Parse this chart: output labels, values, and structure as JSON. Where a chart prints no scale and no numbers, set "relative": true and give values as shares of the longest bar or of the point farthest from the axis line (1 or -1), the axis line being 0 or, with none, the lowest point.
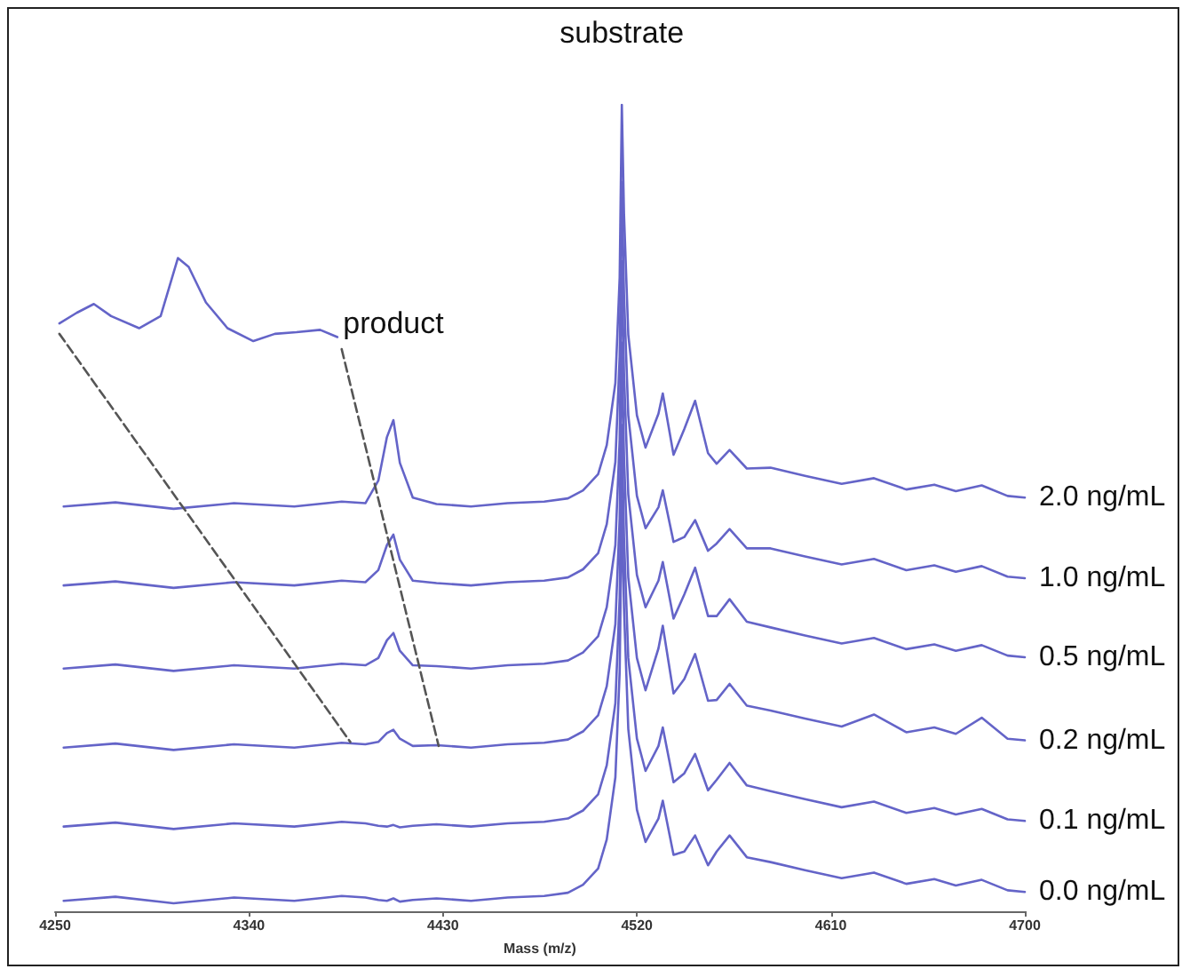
{
  "chart_data": {
    "type": "line",
    "relative": true,
    "marker": "none",
    "xlabel": "Mass (m/z)",
    "xlim": [
      4250,
      4700
    ],
    "xticks": [
      4250,
      4340,
      4430,
      4520,
      4610,
      4700
    ],
    "annotations": [
      {
        "text": "substrate",
        "x": 4513,
        "y": 1.0
      },
      {
        "text": "product",
        "x": 4407,
        "y": 0.609
      }
    ],
    "x": [
      4254,
      4278,
      4305,
      4333,
      4361,
      4383,
      4394,
      4400,
      4404,
      4407,
      4410,
      4416,
      4427,
      4443,
      4460,
      4477,
      4488,
      4495,
      4502,
      4506,
      4510,
      4512,
      4513,
      4514,
      4516,
      4520,
      4524,
      4530,
      4532,
      4537,
      4542,
      4547,
      4553,
      4557,
      4563,
      4571,
      4582,
      4598,
      4615,
      4630,
      4645,
      4658,
      4668,
      4680,
      4692,
      4700
    ],
    "series": [
      {
        "name": "2.0 ng/mL",
        "color": "#6464c8",
        "values": [
          0.502,
          0.507,
          0.499,
          0.506,
          0.502,
          0.508,
          0.506,
          0.534,
          0.588,
          0.609,
          0.556,
          0.513,
          0.505,
          0.502,
          0.506,
          0.508,
          0.512,
          0.522,
          0.542,
          0.578,
          0.655,
          0.786,
          1.0,
          0.865,
          0.715,
          0.615,
          0.575,
          0.617,
          0.642,
          0.566,
          0.598,
          0.633,
          0.568,
          0.555,
          0.572,
          0.549,
          0.55,
          0.54,
          0.53,
          0.537,
          0.523,
          0.529,
          0.521,
          0.528,
          0.515,
          0.513
        ]
      },
      {
        "name": "1.0 ng/mL",
        "color": "#6464c8",
        "values": [
          0.404,
          0.409,
          0.401,
          0.408,
          0.404,
          0.41,
          0.408,
          0.423,
          0.454,
          0.467,
          0.436,
          0.41,
          0.407,
          0.404,
          0.408,
          0.41,
          0.414,
          0.424,
          0.444,
          0.48,
          0.557,
          0.688,
          0.904,
          0.765,
          0.615,
          0.515,
          0.475,
          0.501,
          0.522,
          0.458,
          0.464,
          0.485,
          0.447,
          0.456,
          0.474,
          0.45,
          0.45,
          0.44,
          0.43,
          0.437,
          0.423,
          0.429,
          0.421,
          0.428,
          0.415,
          0.413
        ]
      },
      {
        "name": "0.5 ng/mL",
        "color": "#6464c8",
        "values": [
          0.301,
          0.306,
          0.298,
          0.305,
          0.301,
          0.307,
          0.305,
          0.314,
          0.336,
          0.345,
          0.323,
          0.305,
          0.304,
          0.301,
          0.305,
          0.307,
          0.311,
          0.321,
          0.341,
          0.377,
          0.454,
          0.585,
          0.806,
          0.667,
          0.517,
          0.417,
          0.377,
          0.41,
          0.433,
          0.363,
          0.393,
          0.426,
          0.366,
          0.366,
          0.387,
          0.359,
          0.352,
          0.342,
          0.332,
          0.339,
          0.325,
          0.331,
          0.323,
          0.33,
          0.317,
          0.315
        ]
      },
      {
        "name": "0.2 ng/mL",
        "color": "#6464c8",
        "values": [
          0.203,
          0.208,
          0.2,
          0.207,
          0.203,
          0.209,
          0.207,
          0.21,
          0.221,
          0.225,
          0.214,
          0.205,
          0.206,
          0.203,
          0.207,
          0.209,
          0.213,
          0.223,
          0.243,
          0.279,
          0.356,
          0.487,
          0.705,
          0.564,
          0.414,
          0.314,
          0.274,
          0.326,
          0.354,
          0.27,
          0.288,
          0.319,
          0.261,
          0.262,
          0.282,
          0.255,
          0.249,
          0.239,
          0.229,
          0.244,
          0.222,
          0.228,
          0.22,
          0.24,
          0.214,
          0.212
        ]
      },
      {
        "name": "0.1 ng/mL",
        "color": "#6464c8",
        "values": [
          0.105,
          0.11,
          0.102,
          0.109,
          0.105,
          0.111,
          0.109,
          0.106,
          0.105,
          0.107,
          0.104,
          0.106,
          0.108,
          0.105,
          0.109,
          0.111,
          0.115,
          0.125,
          0.145,
          0.181,
          0.258,
          0.389,
          0.603,
          0.464,
          0.314,
          0.214,
          0.174,
          0.205,
          0.228,
          0.16,
          0.171,
          0.195,
          0.15,
          0.163,
          0.184,
          0.156,
          0.149,
          0.139,
          0.129,
          0.136,
          0.122,
          0.128,
          0.12,
          0.127,
          0.114,
          0.112
        ]
      },
      {
        "name": "0.0 ng/mL",
        "color": "#6464c8",
        "values": [
          0.013,
          0.018,
          0.01,
          0.017,
          0.013,
          0.019,
          0.017,
          0.014,
          0.013,
          0.016,
          0.012,
          0.014,
          0.016,
          0.013,
          0.017,
          0.019,
          0.023,
          0.033,
          0.053,
          0.089,
          0.166,
          0.297,
          0.509,
          0.376,
          0.226,
          0.126,
          0.086,
          0.115,
          0.137,
          0.07,
          0.074,
          0.094,
          0.057,
          0.074,
          0.094,
          0.067,
          0.061,
          0.051,
          0.041,
          0.048,
          0.034,
          0.04,
          0.032,
          0.039,
          0.026,
          0.024
        ]
      },
      {
        "color": "#6464c8",
        "x": [
          4252,
          4260,
          4268,
          4276,
          4289,
          4299,
          4307,
          4312,
          4320,
          4330,
          4342,
          4352,
          4362,
          4373,
          4381
        ],
        "values": [
          0.729,
          0.742,
          0.753,
          0.738,
          0.723,
          0.738,
          0.81,
          0.799,
          0.755,
          0.723,
          0.707,
          0.716,
          0.718,
          0.721,
          0.712
        ]
      },
      {
        "color": "#555555",
        "line_style": "dashed",
        "x": [
          4252,
          4387
        ],
        "values": [
          0.716,
          0.21
        ]
      },
      {
        "color": "#555555",
        "line_style": "dashed",
        "x": [
          4383,
          4428
        ],
        "values": [
          0.697,
          0.205
        ]
      }
    ]
  }
}
